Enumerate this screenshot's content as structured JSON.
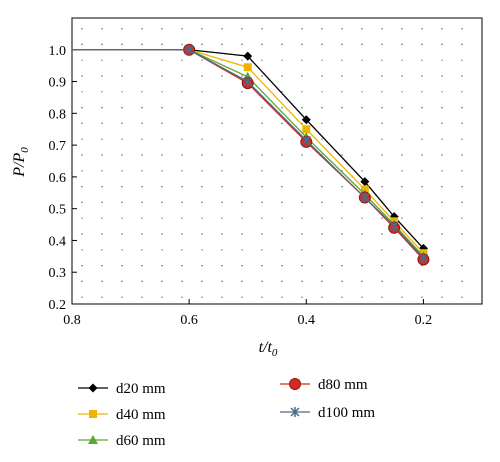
{
  "chart_data": {
    "type": "line",
    "xlabel": "t/t0",
    "ylabel": "P/P0",
    "xlim": [
      0.8,
      0.1
    ],
    "ylim": [
      0.2,
      1.1
    ],
    "x_ticks": [
      "0.8",
      "0.6",
      "0.4",
      "0.2"
    ],
    "y_ticks": [
      "0.2",
      "0.3",
      "0.4",
      "0.5",
      "0.6",
      "0.7",
      "0.8",
      "0.9",
      "1.0"
    ],
    "grid": "dotted",
    "legend_position": "bottom",
    "series": [
      {
        "name": "d20 mm",
        "color": "#000000",
        "marker": "diamond",
        "x": [
          0.8,
          0.6,
          0.5,
          0.4,
          0.3,
          0.25,
          0.2
        ],
        "y": [
          1.0,
          1.0,
          0.98,
          0.78,
          0.585,
          0.475,
          0.375
        ]
      },
      {
        "name": "d40 mm",
        "color": "#f0b400",
        "marker": "square",
        "x": [
          0.8,
          0.6,
          0.5,
          0.4,
          0.3,
          0.25,
          0.2
        ],
        "y": [
          1.0,
          1.0,
          0.945,
          0.75,
          0.56,
          0.46,
          0.36
        ]
      },
      {
        "name": "d60 mm",
        "color": "#5aa832",
        "marker": "triangle",
        "x": [
          0.8,
          0.6,
          0.5,
          0.4,
          0.3,
          0.25,
          0.2
        ],
        "y": [
          1.0,
          1.0,
          0.915,
          0.725,
          0.545,
          0.45,
          0.35
        ]
      },
      {
        "name": "d80 mm",
        "color": "#d42a20",
        "marker": "circle",
        "x": [
          0.8,
          0.6,
          0.5,
          0.4,
          0.3,
          0.25,
          0.2
        ],
        "y": [
          1.0,
          1.0,
          0.895,
          0.71,
          0.535,
          0.44,
          0.34
        ]
      },
      {
        "name": "d100 mm",
        "color": "#4a6b8a",
        "marker": "star",
        "x": [
          0.8,
          0.6,
          0.5,
          0.4,
          0.3,
          0.25,
          0.2
        ],
        "y": [
          1.0,
          1.0,
          0.9,
          0.715,
          0.535,
          0.445,
          0.345
        ]
      }
    ]
  }
}
